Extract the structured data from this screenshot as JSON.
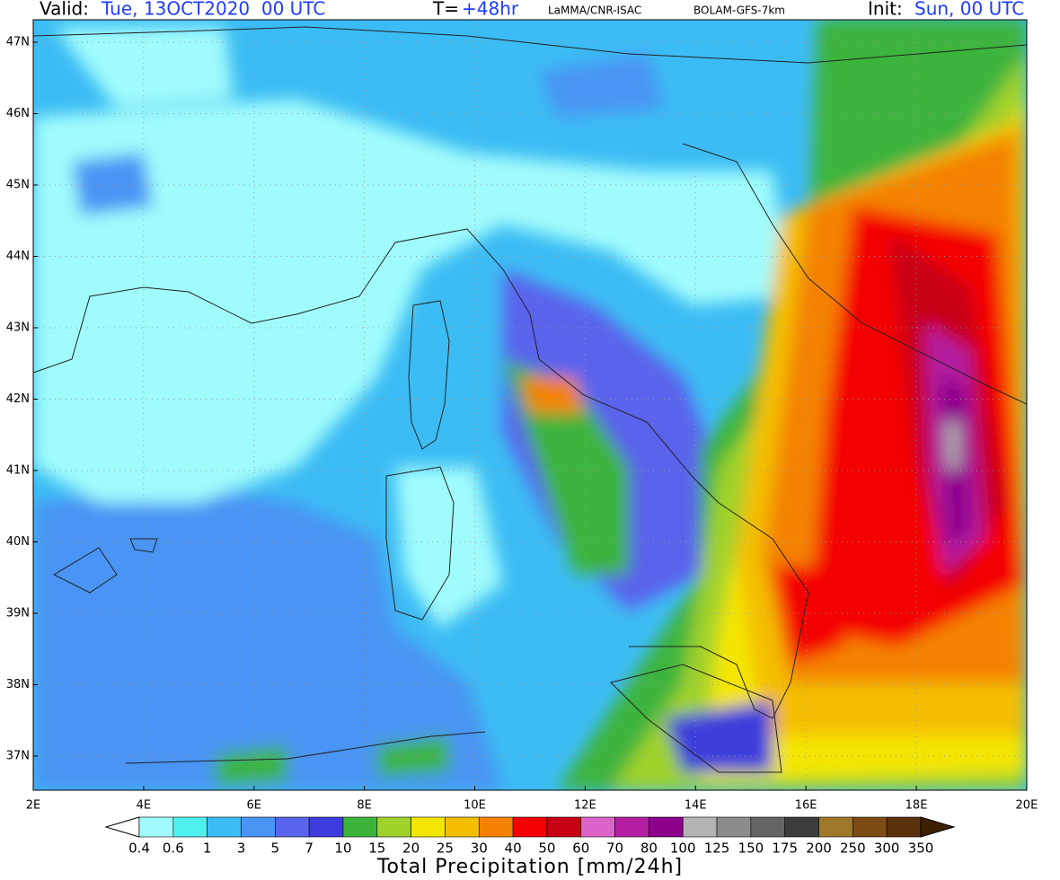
{
  "header": {
    "valid_label": "Valid:",
    "valid_value": "Tue, 13OCT2020  00 UTC",
    "lead_label": "T=",
    "lead_value": "+48hr",
    "source": "LaMMA/CNR-ISAC",
    "model": "BOLAM-GFS-7km",
    "init_label": "Init:",
    "init_value": "Sun, 00 UTC"
  },
  "map": {
    "lat_labels": [
      "47N",
      "46N",
      "45N",
      "44N",
      "43N",
      "42N",
      "41N",
      "40N",
      "39N",
      "38N",
      "37N"
    ],
    "lon_labels": [
      "2E",
      "4E",
      "6E",
      "8E",
      "10E",
      "12E",
      "14E",
      "16E",
      "18E",
      "20E"
    ]
  },
  "colorbar": {
    "title": "Total Precipitation [mm/24h]",
    "levels": [
      "0.4",
      "0.6",
      "1",
      "3",
      "5",
      "7",
      "10",
      "15",
      "20",
      "25",
      "30",
      "40",
      "50",
      "60",
      "70",
      "80",
      "100",
      "125",
      "150",
      "175",
      "200",
      "250",
      "300",
      "350"
    ],
    "colors": [
      "#a0fcfc",
      "#50f0f0",
      "#3cbcf4",
      "#4a94f4",
      "#5a64ec",
      "#3c3cdc",
      "#3cb43c",
      "#a0d22c",
      "#f4e600",
      "#f4be00",
      "#f48200",
      "#f40000",
      "#c80014",
      "#dc64c8",
      "#b41ea0",
      "#8c008c",
      "#b4b4b4",
      "#8c8c8c",
      "#646464",
      "#3c3c3c",
      "#a0782c",
      "#7c4c14",
      "#5a320a",
      "#3c2000"
    ]
  }
}
